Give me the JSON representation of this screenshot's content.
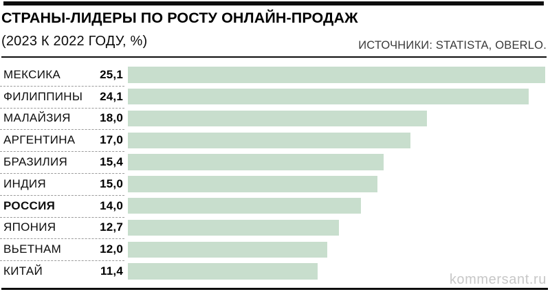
{
  "page": {
    "background": "#ffffff"
  },
  "header": {
    "title": "СТРАНЫ-ЛИДЕРЫ ПО РОСТУ ОНЛАЙН-ПРОДАЖ",
    "subtitle": "(2023 К 2022 ГОДУ, %)",
    "source": "ИСТОЧНИКИ: STATISTA, OBERLO."
  },
  "watermark": "kommersant.ru",
  "colors": {
    "bar": "#c8decd",
    "rule": "#0d0d0d",
    "separator": "#9a9a9a",
    "source_text": "#3a3a3a",
    "watermark_text": "#c7c7c7"
  },
  "chart_data": {
    "type": "bar",
    "orientation": "horizontal",
    "title": "СТРАНЫ-ЛИДЕРЫ ПО РОСТУ ОНЛАЙН-ПРОДАЖ",
    "subtitle": "(2023 К 2022 ГОДУ, %)",
    "source": "ИСТОЧНИКИ: STATISTA, OBERLO.",
    "unit": "%",
    "xlim": [
      0,
      25.1
    ],
    "grid": false,
    "legend": false,
    "categories": [
      "МЕКСИКА",
      "ФИЛИППИНЫ",
      "МАЛАЙЗИЯ",
      "АРГЕНТИНА",
      "БРАЗИЛИЯ",
      "ИНДИЯ",
      "РОССИЯ",
      "ЯПОНИЯ",
      "ВЬЕТНАМ",
      "КИТАЙ"
    ],
    "values": [
      25.1,
      24.1,
      18.0,
      17.0,
      15.4,
      15.0,
      14.0,
      12.7,
      12.0,
      11.4
    ],
    "value_labels": [
      "25,1",
      "24,1",
      "18,0",
      "17,0",
      "15,4",
      "15,0",
      "14,0",
      "12,7",
      "12,0",
      "11,4"
    ],
    "highlighted_category": "РОССИЯ"
  }
}
